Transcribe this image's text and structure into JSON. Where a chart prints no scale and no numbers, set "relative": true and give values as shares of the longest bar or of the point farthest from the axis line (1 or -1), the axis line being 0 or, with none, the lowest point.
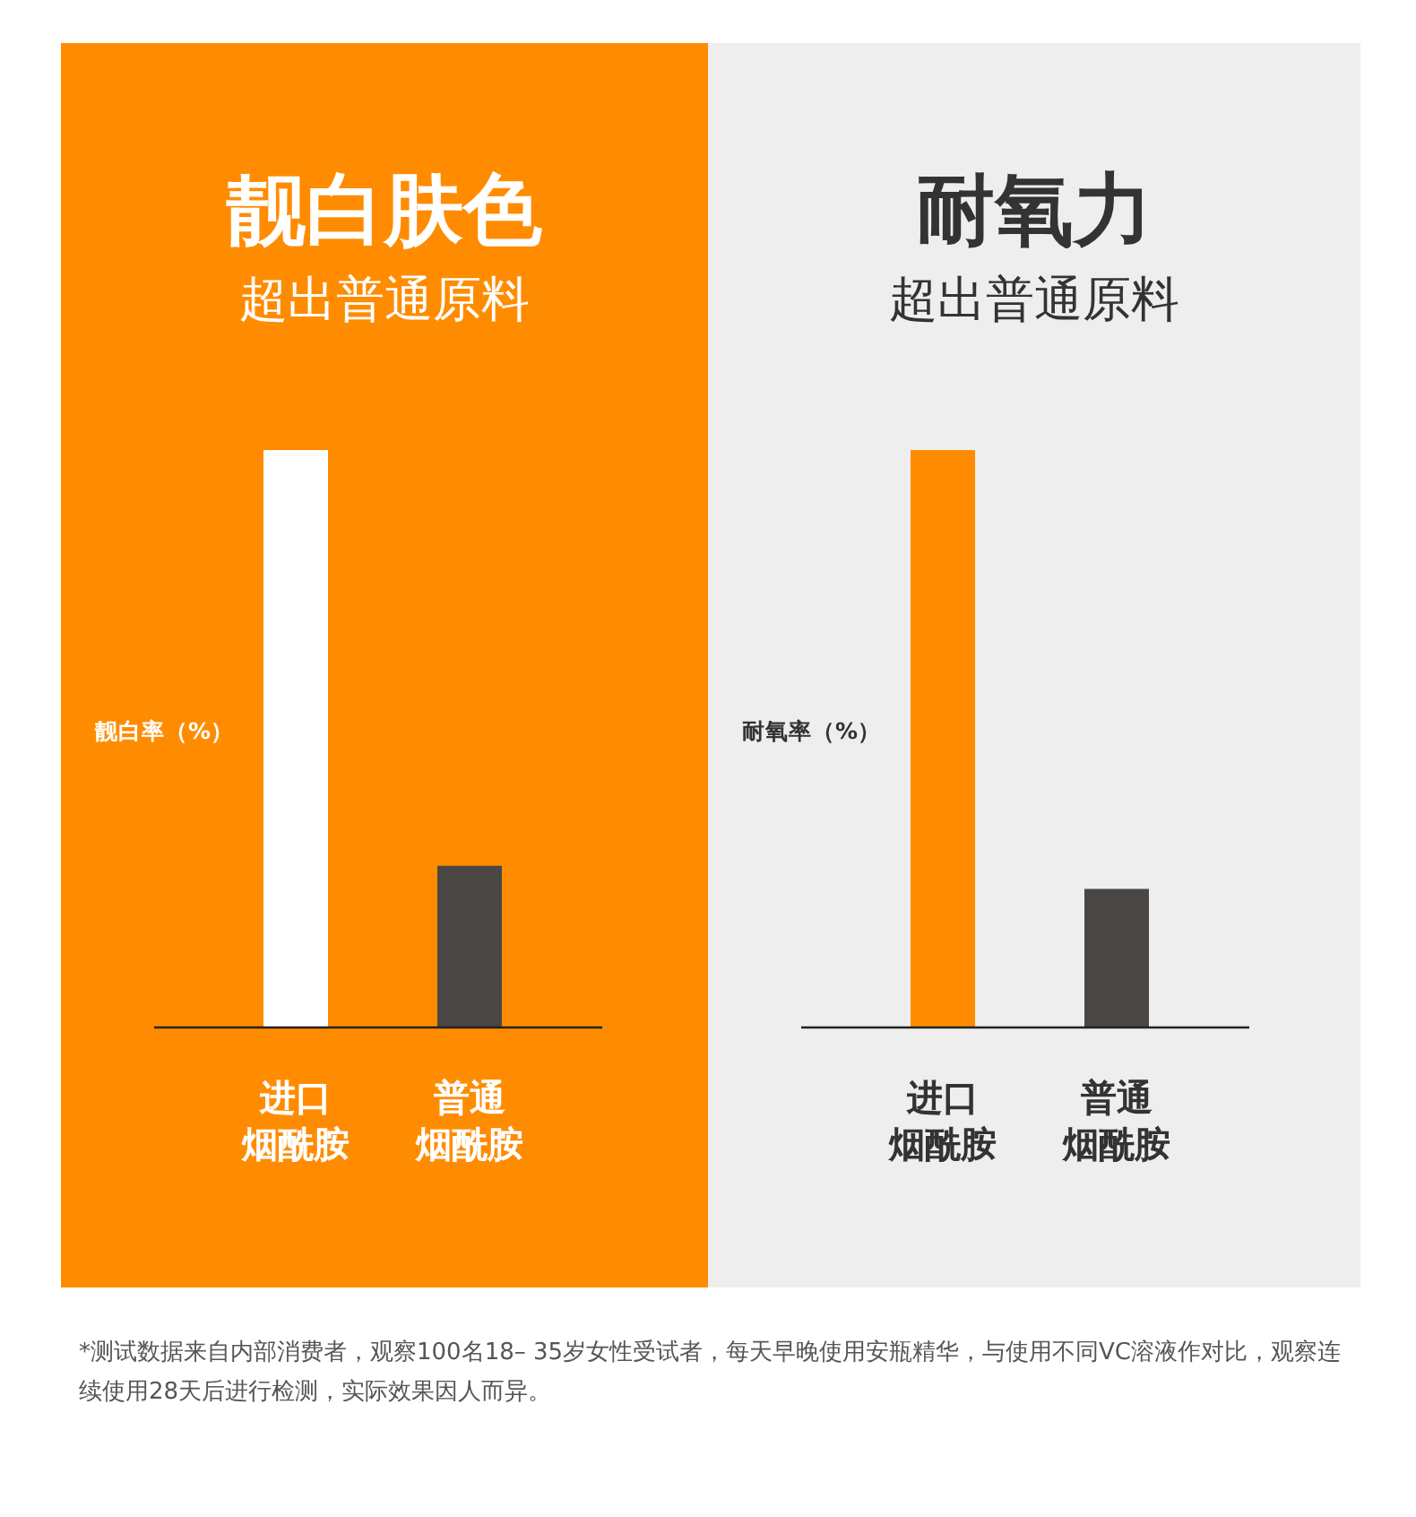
{
  "chart_data": [
    {
      "type": "bar",
      "title": "靓白肤色",
      "subtitle": "超出普通原料",
      "ylabel": "靓白率（%）",
      "relative": true,
      "categories": [
        "进口烟酰胺",
        "普通烟酰胺"
      ],
      "values": [
        1,
        0.28
      ],
      "colors": [
        "#ffffff",
        "#4a4644"
      ]
    },
    {
      "type": "bar",
      "title": "耐氧力",
      "subtitle": "超出普通原料",
      "ylabel": "耐氧率（%）",
      "relative": true,
      "categories": [
        "进口烟酰胺",
        "普通烟酰胺"
      ],
      "values": [
        1,
        0.24
      ],
      "colors": [
        "#ff8c00",
        "#4a4644"
      ],
      "annotations": [
        "*测试数据来自内部消费者，观察100名18– 35岁女性受试者，每天早晚使用安瓶精华，与使用不同VC溶液作对比，观察连续使用28天后进行检测，实际效果因人而异。"
      ]
    }
  ]
}
